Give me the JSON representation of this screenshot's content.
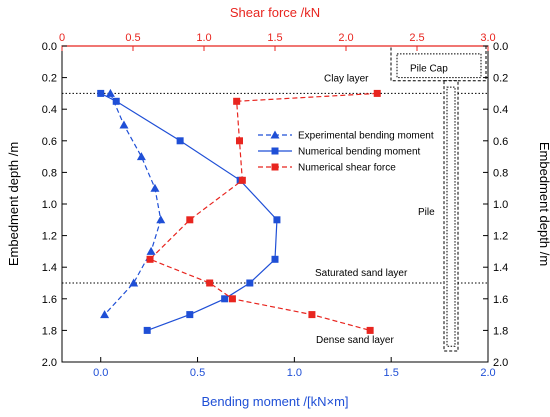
{
  "chart_data": {
    "type": "line",
    "bottom_axis": {
      "label": "Bending moment /[kN×m]",
      "range": [
        -0.2,
        2.0
      ],
      "ticks": [
        "0.0",
        "0.5",
        "1.0",
        "1.5",
        "2.0"
      ],
      "tick_values": [
        0,
        0.5,
        1.0,
        1.5,
        2.0
      ],
      "color": "#1f4fd6"
    },
    "top_axis": {
      "label": "Shear force /kN",
      "range": [
        0,
        3.0
      ],
      "ticks": [
        "0",
        "0.5",
        "1.0",
        "1.5",
        "2.0",
        "2.5",
        "3.0"
      ],
      "tick_values": [
        0,
        0.5,
        1.0,
        1.5,
        2.0,
        2.5,
        3.0
      ],
      "color": "#e8251f"
    },
    "y_axis": {
      "label": "Embedment depth /m",
      "range": [
        0.0,
        2.0
      ],
      "inverted": true,
      "ticks": [
        "0.0",
        "0.2",
        "0.4",
        "0.6",
        "0.8",
        "1.0",
        "1.2",
        "1.4",
        "1.6",
        "1.8",
        "2.0"
      ],
      "tick_values": [
        0,
        0.2,
        0.4,
        0.6,
        0.8,
        1.0,
        1.2,
        1.4,
        1.6,
        1.8,
        2.0
      ]
    },
    "series": [
      {
        "name": "Experimental bending moment",
        "axis": "bottom",
        "color": "#1f4fd6",
        "line": "dashed",
        "marker": "triangle",
        "x": [
          0.05,
          0.12,
          0.21,
          0.28,
          0.31,
          0.26,
          0.17,
          0.02
        ],
        "y": [
          0.3,
          0.5,
          0.7,
          0.9,
          1.1,
          1.3,
          1.5,
          1.7
        ]
      },
      {
        "name": "Numerical bending moment",
        "axis": "bottom",
        "color": "#1f4fd6",
        "line": "solid",
        "marker": "square",
        "x": [
          0.0,
          0.08,
          0.41,
          0.72,
          0.91,
          0.9,
          0.77,
          0.64,
          0.46,
          0.24
        ],
        "y": [
          0.3,
          0.35,
          0.6,
          0.85,
          1.1,
          1.35,
          1.5,
          1.6,
          1.7,
          1.8
        ]
      },
      {
        "name": "Numerical shear force",
        "axis": "top",
        "color": "#e8251f",
        "line": "dashed",
        "marker": "square",
        "x": [
          2.22,
          1.23,
          1.25,
          1.27,
          0.9,
          0.62,
          1.04,
          1.2,
          1.76,
          2.17
        ],
        "y": [
          0.3,
          0.35,
          0.6,
          0.85,
          1.1,
          1.35,
          1.5,
          1.6,
          1.7,
          1.8
        ]
      }
    ],
    "horizontal_lines": [
      0.3,
      1.5
    ],
    "annotations": {
      "clay": "Clay layer",
      "saturated": "Saturated sand layer",
      "dense": "Dense sand layer",
      "pile": "Pile",
      "pile_cap": "Pile Cap"
    },
    "legend_placement": "center",
    "grid": false
  }
}
